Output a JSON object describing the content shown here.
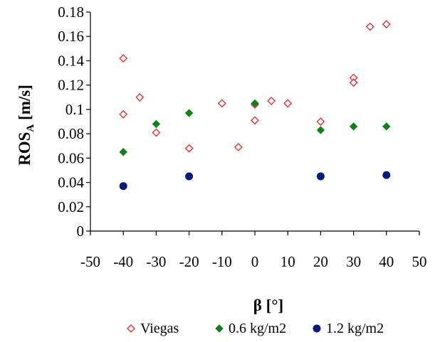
{
  "chart_data": {
    "type": "scatter",
    "title": "",
    "xlabel": "β [°]",
    "ylabel_main": "ROS",
    "ylabel_sub": "A",
    "ylabel_unit": " [m/s]",
    "xlim": [
      -50,
      50
    ],
    "ylim": [
      0,
      0.18
    ],
    "x_ticks": [
      -50,
      -40,
      -30,
      -20,
      -10,
      0,
      10,
      20,
      30,
      40,
      50
    ],
    "y_ticks": [
      0,
      0.02,
      0.04,
      0.06,
      0.08,
      0.1,
      0.12,
      0.14,
      0.16,
      0.18
    ],
    "x_tick_labels": [
      "-50",
      "-40",
      "-30",
      "-20",
      "-10",
      "0",
      "10",
      "20",
      "30",
      "40",
      "50"
    ],
    "y_tick_labels": [
      "0",
      "0.02",
      "0.04",
      "0.06",
      "0.08",
      "0.1",
      "0.12",
      "0.14",
      "0.16",
      "0.18"
    ],
    "grid": false,
    "legend_position": "bottom",
    "series": [
      {
        "name": "Viegas",
        "marker": "open-diamond",
        "color": "#e8262a",
        "points": [
          [
            -40,
            0.142
          ],
          [
            -40,
            0.096
          ],
          [
            -35,
            0.11
          ],
          [
            -30,
            0.081
          ],
          [
            -20,
            0.068
          ],
          [
            -10,
            0.105
          ],
          [
            -5,
            0.069
          ],
          [
            0,
            0.104
          ],
          [
            0,
            0.091
          ],
          [
            5,
            0.107
          ],
          [
            10,
            0.105
          ],
          [
            20,
            0.09
          ],
          [
            30,
            0.126
          ],
          [
            30,
            0.122
          ],
          [
            35,
            0.168
          ],
          [
            40,
            0.17
          ]
        ]
      },
      {
        "name": "0.6 kg/m2",
        "marker": "filled-diamond",
        "color": "#10801a",
        "points": [
          [
            -40,
            0.065
          ],
          [
            -30,
            0.088
          ],
          [
            -20,
            0.097
          ],
          [
            0,
            0.105
          ],
          [
            20,
            0.083
          ],
          [
            30,
            0.086
          ],
          [
            40,
            0.086
          ]
        ]
      },
      {
        "name": "1.2 kg/m2",
        "marker": "filled-circle",
        "color": "#0a1a7a",
        "points": [
          [
            -40,
            0.037
          ],
          [
            -20,
            0.045
          ],
          [
            20,
            0.045
          ],
          [
            40,
            0.046
          ]
        ]
      }
    ]
  }
}
